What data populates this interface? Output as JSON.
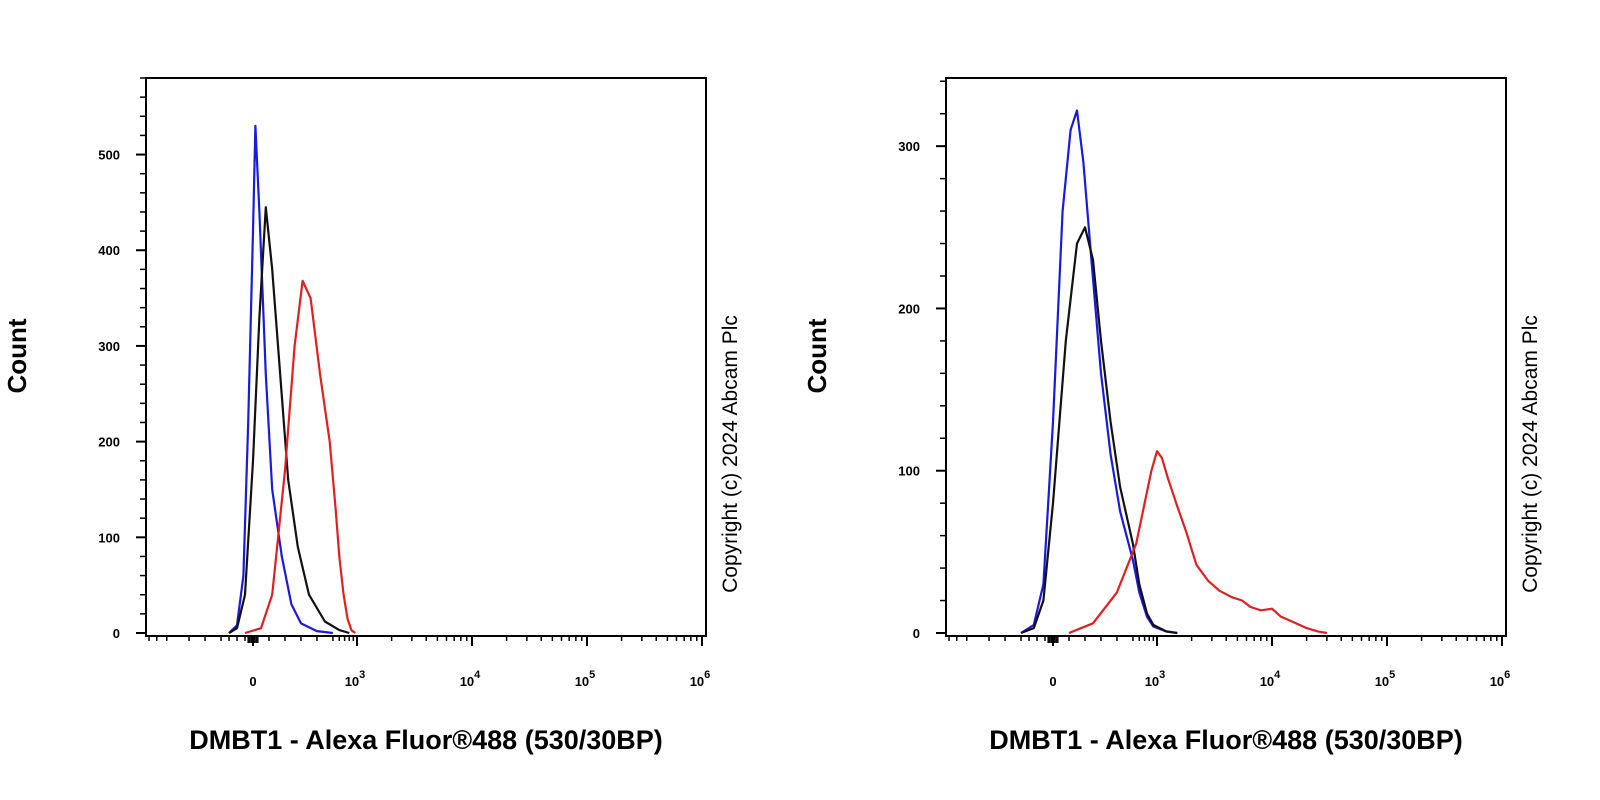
{
  "chart_data": [
    {
      "type": "line",
      "title": "",
      "xlabel": "DMBT1 - Alexa Fluor®488 (530/30BP)",
      "ylabel": "Count",
      "copyright": "Copyright (c) 2024 Abcam Plc",
      "ylim": [
        0,
        580
      ],
      "x_scale": "biexponential",
      "y_ticks": [
        0,
        100,
        200,
        300,
        400,
        500
      ],
      "x_ticks": [
        {
          "value": 0,
          "base": "0",
          "exp": ""
        },
        {
          "value": 1000,
          "base": "10",
          "exp": "3"
        },
        {
          "value": 10000,
          "base": "10",
          "exp": "4"
        },
        {
          "value": 100000,
          "base": "10",
          "exp": "5"
        },
        {
          "value": 1000000,
          "base": "10",
          "exp": "6"
        }
      ],
      "series": [
        {
          "name": "blue",
          "color": "#1a1adc",
          "points": [
            [
              -150,
              0
            ],
            [
              -100,
              8
            ],
            [
              -60,
              60
            ],
            [
              -30,
              220
            ],
            [
              0,
              420
            ],
            [
              15,
              530
            ],
            [
              40,
              440
            ],
            [
              80,
              270
            ],
            [
              120,
              150
            ],
            [
              180,
              80
            ],
            [
              240,
              30
            ],
            [
              300,
              10
            ],
            [
              400,
              2
            ],
            [
              500,
              0
            ]
          ]
        },
        {
          "name": "black",
          "color": "#111111",
          "points": [
            [
              -150,
              0
            ],
            [
              -100,
              5
            ],
            [
              -50,
              40
            ],
            [
              0,
              180
            ],
            [
              40,
              330
            ],
            [
              80,
              445
            ],
            [
              120,
              380
            ],
            [
              170,
              270
            ],
            [
              220,
              160
            ],
            [
              280,
              90
            ],
            [
              350,
              40
            ],
            [
              450,
              12
            ],
            [
              600,
              3
            ],
            [
              800,
              0
            ]
          ]
        },
        {
          "name": "red",
          "color": "#e02020",
          "points": [
            [
              -50,
              0
            ],
            [
              50,
              5
            ],
            [
              120,
              40
            ],
            [
              200,
              170
            ],
            [
              260,
              300
            ],
            [
              310,
              368
            ],
            [
              360,
              350
            ],
            [
              420,
              270
            ],
            [
              480,
              200
            ],
            [
              540,
              130
            ],
            [
              600,
              80
            ],
            [
              680,
              40
            ],
            [
              760,
              15
            ],
            [
              850,
              3
            ],
            [
              950,
              0
            ]
          ]
        }
      ]
    },
    {
      "type": "line",
      "title": "",
      "xlabel": "DMBT1 - Alexa Fluor®488 (530/30BP)",
      "ylabel": "Count",
      "copyright": "Copyright (c) 2024 Abcam Plc",
      "ylim": [
        0,
        342
      ],
      "x_scale": "biexponential",
      "y_ticks": [
        0,
        100,
        200,
        300
      ],
      "x_ticks": [
        {
          "value": 0,
          "base": "0",
          "exp": ""
        },
        {
          "value": 1000,
          "base": "10",
          "exp": "3"
        },
        {
          "value": 10000,
          "base": "10",
          "exp": "4"
        },
        {
          "value": 100000,
          "base": "10",
          "exp": "5"
        },
        {
          "value": 1000000,
          "base": "10",
          "exp": "6"
        }
      ],
      "series": [
        {
          "name": "blue",
          "color": "#1a1adc",
          "points": [
            [
              -200,
              0
            ],
            [
              -120,
              5
            ],
            [
              -60,
              30
            ],
            [
              0,
              130
            ],
            [
              60,
              260
            ],
            [
              110,
              310
            ],
            [
              150,
              322
            ],
            [
              190,
              290
            ],
            [
              240,
              230
            ],
            [
              300,
              160
            ],
            [
              360,
              110
            ],
            [
              420,
              75
            ],
            [
              500,
              45
            ],
            [
              600,
              25
            ],
            [
              750,
              10
            ],
            [
              900,
              4
            ],
            [
              1200,
              1
            ],
            [
              1500,
              0
            ]
          ]
        },
        {
          "name": "black",
          "color": "#111111",
          "points": [
            [
              -200,
              0
            ],
            [
              -120,
              3
            ],
            [
              -60,
              20
            ],
            [
              0,
              80
            ],
            [
              80,
              180
            ],
            [
              150,
              240
            ],
            [
              200,
              250
            ],
            [
              250,
              230
            ],
            [
              300,
              180
            ],
            [
              360,
              130
            ],
            [
              420,
              90
            ],
            [
              500,
              55
            ],
            [
              600,
              30
            ],
            [
              750,
              12
            ],
            [
              900,
              5
            ],
            [
              1200,
              1
            ],
            [
              1500,
              0
            ]
          ]
        },
        {
          "name": "red",
          "color": "#e02020",
          "points": [
            [
              100,
              0
            ],
            [
              250,
              6
            ],
            [
              400,
              25
            ],
            [
              550,
              55
            ],
            [
              700,
              80
            ],
            [
              850,
              100
            ],
            [
              1000,
              112
            ],
            [
              1100,
              108
            ],
            [
              1250,
              95
            ],
            [
              1500,
              78
            ],
            [
              1800,
              62
            ],
            [
              2200,
              42
            ],
            [
              2800,
              32
            ],
            [
              3500,
              26
            ],
            [
              4500,
              22
            ],
            [
              5500,
              20
            ],
            [
              6500,
              16
            ],
            [
              8000,
              14
            ],
            [
              10000,
              15
            ],
            [
              12000,
              10
            ],
            [
              15000,
              7
            ],
            [
              20000,
              3
            ],
            [
              25000,
              1
            ],
            [
              30000,
              0
            ]
          ]
        }
      ]
    }
  ]
}
